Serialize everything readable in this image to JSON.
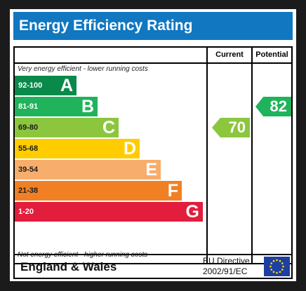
{
  "title": "Energy Efficiency Rating",
  "columns": {
    "current": "Current",
    "potential": "Potential"
  },
  "notes": {
    "top": "Very energy efficient - lower running costs",
    "bottom": "Not energy efficient - higher running costs"
  },
  "bands": [
    {
      "range": "92-100",
      "letter": "A",
      "color": "#0a8a4a",
      "range_color": "#ffffff"
    },
    {
      "range": "81-91",
      "letter": "B",
      "color": "#1fb35b",
      "range_color": "#ffffff"
    },
    {
      "range": "69-80",
      "letter": "C",
      "color": "#8cc63f",
      "range_color": "#1d1d1d"
    },
    {
      "range": "55-68",
      "letter": "D",
      "color": "#ffcc00",
      "range_color": "#1d1d1d"
    },
    {
      "range": "39-54",
      "letter": "E",
      "color": "#f7ad6b",
      "range_color": "#1d1d1d"
    },
    {
      "range": "21-38",
      "letter": "F",
      "color": "#f08023",
      "range_color": "#1d1d1d"
    },
    {
      "range": "1-20",
      "letter": "G",
      "color": "#e31d3c",
      "range_color": "#ffffff"
    }
  ],
  "ratings": {
    "current": {
      "value": "70",
      "band": "C",
      "color": "#8cc63f"
    },
    "potential": {
      "value": "82",
      "band": "B",
      "color": "#1fb35b"
    }
  },
  "footer": {
    "region": "England & Wales",
    "directive_line1": "EU Directive",
    "directive_line2": "2002/91/EC"
  },
  "eu_flag": {
    "icon": "eu-flag-icon",
    "background": "#1f3fa0",
    "star_color": "#ffdd00"
  }
}
